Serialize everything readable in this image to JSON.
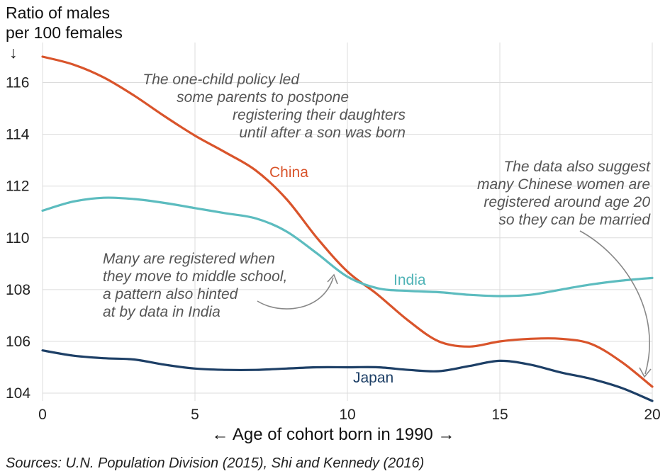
{
  "chart_data": {
    "type": "line",
    "ylabel_line1": "Ratio of males",
    "ylabel_line2": "per 100 females",
    "ylabel_arrow": "↓",
    "xlabel": "← Age of cohort born in 1990 →",
    "source": "Sources: U.N. Population Division (2015), Shi and Kennedy (2016)",
    "xlim": [
      0,
      20
    ],
    "ylim": [
      103.7,
      117.0
    ],
    "xticks": [
      0,
      5,
      10,
      15,
      20
    ],
    "yticks": [
      104,
      106,
      108,
      110,
      112,
      114,
      116
    ],
    "grid": true,
    "x": [
      0,
      1,
      2,
      3,
      4,
      5,
      6,
      7,
      8,
      9,
      10,
      11,
      12,
      13,
      14,
      15,
      16,
      17,
      18,
      19,
      20
    ],
    "series": [
      {
        "name": "China",
        "color": "#d9542b",
        "values": [
          117.0,
          116.7,
          116.2,
          115.5,
          114.7,
          113.95,
          113.3,
          112.6,
          111.5,
          110.0,
          108.7,
          107.8,
          106.8,
          106.0,
          105.8,
          106.0,
          106.1,
          106.1,
          105.9,
          105.2,
          104.25
        ]
      },
      {
        "name": "India",
        "color": "#5cbcbf",
        "values": [
          111.05,
          111.4,
          111.55,
          111.5,
          111.35,
          111.15,
          110.95,
          110.75,
          110.25,
          109.4,
          108.5,
          108.05,
          107.95,
          107.9,
          107.8,
          107.75,
          107.8,
          108.0,
          108.2,
          108.35,
          108.45
        ]
      },
      {
        "name": "Japan",
        "color": "#1d3f66",
        "values": [
          105.65,
          105.45,
          105.35,
          105.3,
          105.1,
          104.95,
          104.9,
          104.9,
          104.95,
          105.0,
          105.0,
          105.0,
          104.9,
          104.85,
          105.05,
          105.25,
          105.1,
          104.8,
          104.55,
          104.2,
          103.7
        ]
      }
    ],
    "annotations": {
      "one_child": [
        "The one-child policy led",
        "some parents to postpone",
        "registering their daughters",
        "until after a son was born"
      ],
      "middle_school": [
        "Many are registered when",
        "they move to middle school,",
        "a pattern also hinted",
        "at by data in India"
      ],
      "age_20": [
        "The data also suggest",
        "many Chinese women are",
        "registered around age 20",
        "so they can be married"
      ]
    }
  }
}
